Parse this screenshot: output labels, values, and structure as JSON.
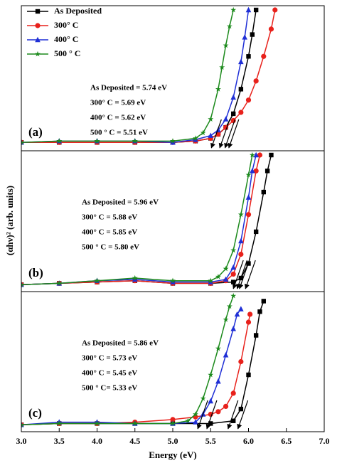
{
  "chart_data": [
    {
      "type": "line",
      "panel_label": "(a)",
      "legend": "upper left",
      "xlim": [
        3,
        7
      ],
      "ylim": [
        0,
        100
      ],
      "annotations": [
        "As Deposited = 5.74 eV",
        "300° C = 5.69  eV",
        "400° C = 5.62 eV",
        "500 ° C = 5.51 eV"
      ],
      "series": [
        {
          "name": "As Deposited",
          "color": "#000000",
          "marker": "square",
          "band_gap": 5.74,
          "x": [
            3.0,
            3.5,
            4.0,
            4.5,
            5.0,
            5.3,
            5.5,
            5.6,
            5.7,
            5.8,
            5.9,
            6.0,
            6.05,
            6.1
          ],
          "values": [
            3,
            3,
            3,
            3,
            3,
            4,
            6,
            9,
            14,
            24,
            42,
            66,
            82,
            100
          ]
        },
        {
          "name": "300° C",
          "color": "#e8211b",
          "marker": "circle",
          "band_gap": 5.69,
          "x": [
            3.0,
            3.5,
            4.0,
            4.5,
            5.0,
            5.3,
            5.5,
            5.6,
            5.7,
            5.8,
            5.9,
            6.0,
            6.1,
            6.2,
            6.3,
            6.35
          ],
          "values": [
            3,
            3,
            3,
            3,
            3,
            4,
            6,
            9,
            14,
            19,
            25,
            34,
            48,
            66,
            86,
            100
          ]
        },
        {
          "name": "400° C",
          "color": "#1f2fd6",
          "marker": "triangle",
          "band_gap": 5.62,
          "x": [
            3.0,
            3.5,
            4.0,
            4.5,
            5.0,
            5.3,
            5.5,
            5.6,
            5.7,
            5.8,
            5.9,
            5.95,
            6.0
          ],
          "values": [
            3,
            4,
            4,
            4,
            3,
            5,
            8,
            12,
            20,
            36,
            62,
            80,
            100
          ]
        },
        {
          "name": "500 ° C",
          "color": "#1c8a1c",
          "marker": "star",
          "band_gap": 5.51,
          "x": [
            3.0,
            3.5,
            4.0,
            4.5,
            5.0,
            5.3,
            5.4,
            5.5,
            5.6,
            5.65,
            5.7,
            5.75,
            5.8
          ],
          "values": [
            3,
            4,
            4,
            4,
            4,
            6,
            10,
            20,
            42,
            58,
            74,
            88,
            100
          ]
        }
      ]
    },
    {
      "type": "line",
      "panel_label": "(b)",
      "y_label": "(αhν)² (arb. units)",
      "xlim": [
        3,
        7
      ],
      "ylim": [
        0,
        100
      ],
      "annotations": [
        "As Deposited = 5.96 eV",
        "300° C = 5.88  eV",
        "400° C = 5.85 eV",
        "500 ° C = 5.80 eV"
      ],
      "series": [
        {
          "name": "As Deposited",
          "color": "#000000",
          "marker": "square",
          "band_gap": 5.96,
          "x": [
            3.0,
            3.5,
            4.0,
            4.5,
            5.0,
            5.5,
            5.8,
            5.9,
            6.0,
            6.1,
            6.2,
            6.25,
            6.3
          ],
          "values": [
            2,
            3,
            4,
            5,
            3,
            3,
            4,
            7,
            18,
            42,
            72,
            88,
            100
          ]
        },
        {
          "name": "300° C",
          "color": "#e8211b",
          "marker": "circle",
          "band_gap": 5.88,
          "x": [
            3.0,
            3.5,
            4.0,
            4.5,
            5.0,
            5.5,
            5.7,
            5.8,
            5.9,
            6.0,
            6.1,
            6.15
          ],
          "values": [
            2,
            3,
            4,
            5,
            3,
            3,
            5,
            10,
            25,
            55,
            88,
            100
          ]
        },
        {
          "name": "400° C",
          "color": "#1f2fd6",
          "marker": "triangle",
          "band_gap": 5.85,
          "x": [
            3.0,
            3.5,
            4.0,
            4.5,
            5.0,
            5.5,
            5.7,
            5.8,
            5.9,
            6.0,
            6.05,
            6.1
          ],
          "values": [
            2,
            3,
            5,
            6,
            4,
            4,
            6,
            15,
            35,
            68,
            88,
            100
          ]
        },
        {
          "name": "500 ° C",
          "color": "#1c8a1c",
          "marker": "star",
          "band_gap": 5.8,
          "x": [
            3.0,
            3.5,
            4.0,
            4.5,
            5.0,
            5.5,
            5.6,
            5.7,
            5.8,
            5.9,
            6.0,
            6.05
          ],
          "values": [
            2,
            3,
            5,
            7,
            5,
            5,
            8,
            14,
            28,
            55,
            85,
            100
          ]
        }
      ]
    },
    {
      "type": "line",
      "panel_label": "(c)",
      "x_label": "Energy (eV)",
      "xlim": [
        3,
        7
      ],
      "ylim": [
        0,
        100
      ],
      "xticks": [
        {
          "value": 3,
          "label": "3.0"
        },
        {
          "value": 3.5,
          "label": "3.5"
        },
        {
          "value": 4,
          "label": "4.0"
        },
        {
          "value": 4.5,
          "label": "4.5"
        },
        {
          "value": 5,
          "label": "5.0"
        },
        {
          "value": 5.5,
          "label": "5.5"
        },
        {
          "value": 6,
          "label": "6.0"
        },
        {
          "value": 6.5,
          "label": "6.5"
        },
        {
          "value": 7,
          "label": "7.0"
        }
      ],
      "annotations": [
        "As Deposited = 5.86 eV",
        "300° C = 5.73 eV",
        "400° C = 5.45 eV",
        "500 ° C= 5.33 eV"
      ],
      "series": [
        {
          "name": "As Deposited",
          "color": "#000000",
          "marker": "square",
          "band_gap": 5.86,
          "x": [
            3.0,
            3.5,
            4.0,
            4.5,
            5.0,
            5.5,
            5.8,
            5.9,
            6.0,
            6.1,
            6.15,
            6.2
          ],
          "values": [
            2,
            3,
            3,
            3,
            3,
            3,
            5,
            14,
            40,
            70,
            88,
            96
          ]
        },
        {
          "name": "300° C",
          "color": "#e8211b",
          "marker": "circle",
          "band_gap": 5.73,
          "x": [
            3.0,
            3.5,
            4.0,
            4.5,
            5.0,
            5.3,
            5.5,
            5.6,
            5.7,
            5.8,
            5.9,
            6.0,
            6.02
          ],
          "values": [
            2,
            3,
            3,
            4,
            6,
            8,
            10,
            12,
            16,
            26,
            50,
            80,
            86
          ]
        },
        {
          "name": "400° C",
          "color": "#1f2fd6",
          "marker": "triangle",
          "band_gap": 5.45,
          "x": [
            3.0,
            3.5,
            4.0,
            4.5,
            5.0,
            5.3,
            5.4,
            5.5,
            5.6,
            5.7,
            5.8,
            5.85,
            5.9
          ],
          "values": [
            2,
            4,
            4,
            3,
            3,
            4,
            10,
            20,
            35,
            55,
            75,
            86,
            90
          ]
        },
        {
          "name": "500 ° C",
          "color": "#1c8a1c",
          "marker": "star",
          "band_gap": 5.33,
          "x": [
            3.0,
            3.5,
            4.0,
            4.5,
            5.0,
            5.2,
            5.3,
            5.4,
            5.5,
            5.6,
            5.7,
            5.75,
            5.8
          ],
          "values": [
            2,
            3,
            3,
            3,
            3,
            5,
            10,
            22,
            40,
            60,
            82,
            92,
            100
          ]
        }
      ]
    }
  ]
}
